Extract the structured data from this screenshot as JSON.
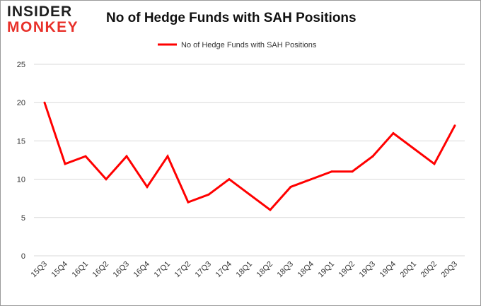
{
  "logo": {
    "line1": "INSIDER",
    "line2": "MONKEY"
  },
  "chart_data": {
    "type": "line",
    "title": "No of Hedge Funds with SAH Positions",
    "xlabel": "",
    "ylabel": "",
    "categories": [
      "15Q3",
      "15Q4",
      "16Q1",
      "16Q2",
      "16Q3",
      "16Q4",
      "17Q1",
      "17Q2",
      "17Q3",
      "17Q4",
      "18Q1",
      "18Q2",
      "18Q3",
      "18Q4",
      "19Q1",
      "19Q2",
      "19Q3",
      "19Q4",
      "20Q1",
      "20Q2",
      "20Q3"
    ],
    "series": [
      {
        "name": "No of Hedge Funds with SAH Positions",
        "color": "#ff0000",
        "values": [
          20,
          12,
          13,
          10,
          13,
          9,
          13,
          7,
          8,
          10,
          8,
          6,
          9,
          10,
          11,
          11,
          13,
          16,
          14,
          12,
          17
        ]
      }
    ],
    "ylim": [
      0,
      25
    ],
    "yticks": [
      0,
      5,
      10,
      15,
      20,
      25
    ],
    "grid": true,
    "legend": "top-center"
  }
}
